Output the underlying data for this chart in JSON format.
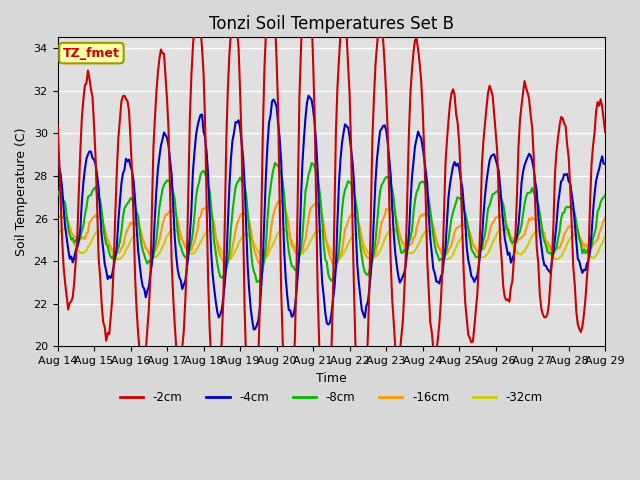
{
  "title": "Tonzi Soil Temperatures Set B",
  "xlabel": "Time",
  "ylabel": "Soil Temperature (C)",
  "ylim": [
    20,
    34.5
  ],
  "xlim": [
    0,
    360
  ],
  "xtick_labels": [
    "Aug 14",
    "Aug 15",
    "Aug 16",
    "Aug 17",
    "Aug 18",
    "Aug 19",
    "Aug 20",
    "Aug 21",
    "Aug 22",
    "Aug 23",
    "Aug 24",
    "Aug 25",
    "Aug 26",
    "Aug 27",
    "Aug 28",
    "Aug 29"
  ],
  "xtick_positions": [
    0,
    24,
    48,
    72,
    96,
    120,
    144,
    168,
    192,
    216,
    240,
    264,
    288,
    312,
    336,
    360
  ],
  "series_colors": [
    "#cc0000",
    "#0000cc",
    "#00bb00",
    "#ff9900",
    "#cccc00"
  ],
  "series_names": [
    "-2cm",
    "-4cm",
    "-8cm",
    "-16cm",
    "-32cm"
  ],
  "line_width": 1.5,
  "plot_bg_color": "#e0e0e0",
  "fig_bg_color": "#d8d8d8",
  "grid_color": "#ffffff",
  "annotation_text": "TZ_fmet",
  "annotation_fg": "#cc0000",
  "annotation_bg": "#ffffaa",
  "annotation_border": "#999900",
  "title_fontsize": 12,
  "label_fontsize": 9,
  "tick_fontsize": 8
}
